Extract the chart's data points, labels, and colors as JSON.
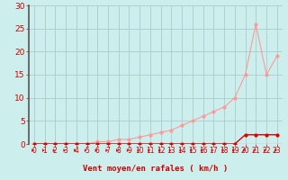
{
  "xlabel": "Vent moyen/en rafales ( km/h )",
  "bg_color": "#cceeed",
  "grid_color": "#aacccc",
  "xlim": [
    -0.5,
    23.5
  ],
  "ylim": [
    0,
    30
  ],
  "xticks": [
    0,
    1,
    2,
    3,
    4,
    5,
    6,
    7,
    8,
    9,
    10,
    11,
    12,
    13,
    14,
    15,
    16,
    17,
    18,
    19,
    20,
    21,
    22,
    23
  ],
  "yticks": [
    0,
    5,
    10,
    15,
    20,
    25,
    30
  ],
  "line_red_x": [
    0,
    1,
    2,
    3,
    4,
    5,
    6,
    7,
    8,
    9,
    10,
    11,
    12,
    13,
    14,
    15,
    16,
    17,
    18,
    19,
    20,
    21,
    22,
    23
  ],
  "line_red_y": [
    0,
    0,
    0,
    0,
    0,
    0,
    0,
    0,
    0,
    0,
    0,
    0,
    0,
    0,
    0,
    0,
    0,
    0,
    0,
    0,
    2,
    2,
    2,
    2
  ],
  "line_pink_x": [
    0,
    1,
    2,
    3,
    4,
    5,
    6,
    7,
    8,
    9,
    10,
    11,
    12,
    13,
    14,
    15,
    16,
    17,
    18,
    19,
    20,
    21,
    22,
    23
  ],
  "line_pink_y": [
    0,
    0,
    0,
    0,
    0,
    0,
    0.5,
    0.5,
    1,
    1,
    1.5,
    2,
    2.5,
    3,
    4,
    5,
    6,
    7,
    8,
    10,
    15,
    26,
    15,
    19
  ],
  "red_color": "#dd0000",
  "pink_color": "#ff9999",
  "spine_color": "#555555",
  "xlabel_color": "#cc0000",
  "tick_color": "#cc0000",
  "xlabel_fontsize": 6.5,
  "ytick_fontsize": 6.5,
  "xtick_fontsize": 5.5
}
